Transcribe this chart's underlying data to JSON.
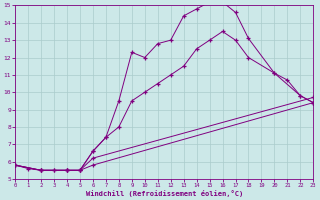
{
  "xlabel": "Windchill (Refroidissement éolien,°C)",
  "bg_color": "#cce8e8",
  "line_color": "#800080",
  "grid_color": "#aacccc",
  "xlim": [
    0,
    23
  ],
  "ylim": [
    5,
    15
  ],
  "xticks": [
    0,
    1,
    2,
    3,
    4,
    5,
    6,
    7,
    8,
    9,
    10,
    11,
    12,
    13,
    14,
    15,
    16,
    17,
    18,
    19,
    20,
    21,
    22,
    23
  ],
  "yticks": [
    5,
    6,
    7,
    8,
    9,
    10,
    11,
    12,
    13,
    14,
    15
  ],
  "line1_x": [
    0,
    1,
    2,
    3,
    4,
    5,
    6,
    7,
    8,
    9,
    10,
    11,
    12,
    13,
    14,
    15,
    16,
    17,
    18,
    20,
    22,
    23
  ],
  "line1_y": [
    5.8,
    5.6,
    5.5,
    5.5,
    5.5,
    5.5,
    6.6,
    7.4,
    9.5,
    12.3,
    12.0,
    12.8,
    13.0,
    14.4,
    14.8,
    15.2,
    15.2,
    14.6,
    13.1,
    11.1,
    9.8,
    9.4
  ],
  "line2_x": [
    0,
    2,
    3,
    4,
    5,
    6,
    7,
    8,
    9,
    10,
    11,
    12,
    13,
    14,
    15,
    16,
    17,
    18,
    20,
    21,
    22,
    23
  ],
  "line2_y": [
    5.8,
    5.5,
    5.5,
    5.5,
    5.5,
    6.6,
    7.4,
    8.0,
    9.5,
    10.0,
    10.5,
    11.0,
    11.5,
    12.5,
    13.0,
    13.5,
    13.0,
    12.0,
    11.1,
    10.7,
    9.8,
    9.4
  ],
  "line3_x": [
    0,
    2,
    4,
    5,
    6,
    23
  ],
  "line3_y": [
    5.8,
    5.5,
    5.5,
    5.5,
    6.2,
    9.7
  ],
  "line4_x": [
    0,
    2,
    4,
    5,
    6,
    23
  ],
  "line4_y": [
    5.8,
    5.5,
    5.5,
    5.5,
    5.8,
    9.4
  ]
}
